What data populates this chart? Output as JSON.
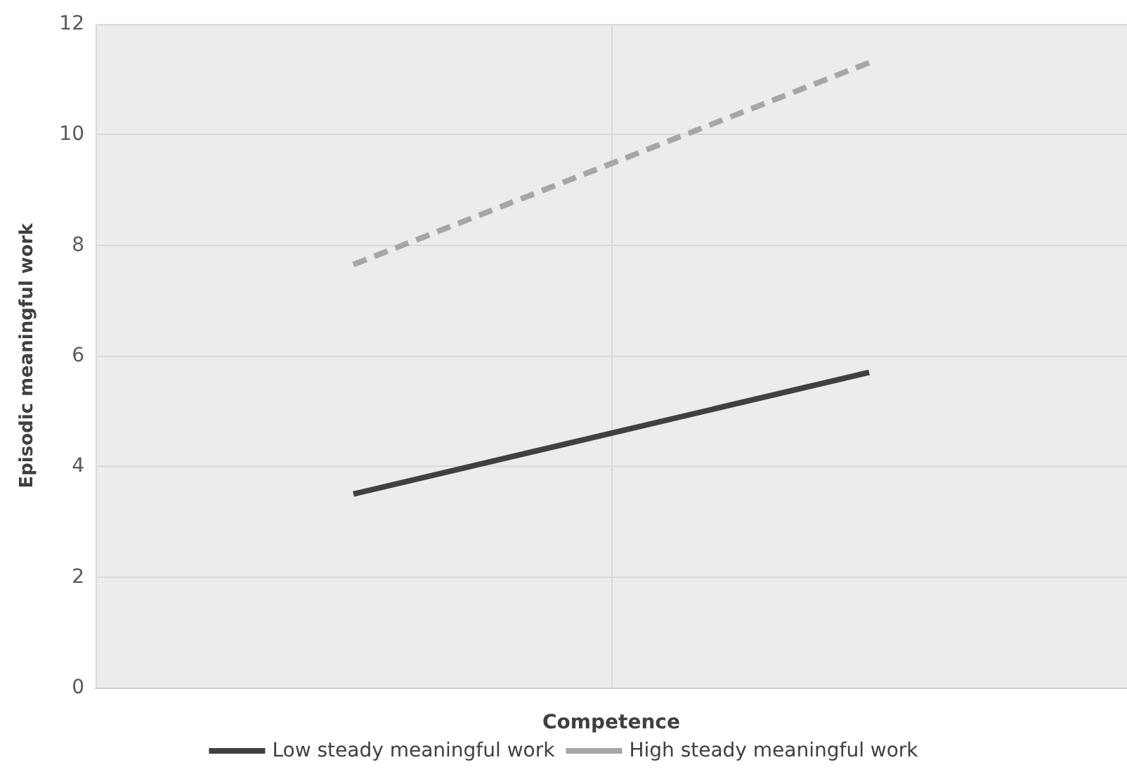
{
  "chart_data": {
    "type": "line",
    "xlabel": "Competence",
    "ylabel": "Episodic meaningful work",
    "categories": [
      null,
      null
    ],
    "series": [
      {
        "name": "Low steady meaningful work",
        "color": "#404040",
        "line_style": "solid",
        "values": [
          3.5,
          5.7
        ]
      },
      {
        "name": "High steady meaningful work",
        "color": "#a6a6a6",
        "line_style": "dashed",
        "values": [
          7.65,
          11.3
        ]
      }
    ],
    "ylim": [
      0,
      12
    ],
    "yticks": [
      0,
      2,
      4,
      6,
      8,
      10,
      12
    ],
    "grid": true,
    "legend": "bottom",
    "marker": "none",
    "tick_labels": "y"
  }
}
